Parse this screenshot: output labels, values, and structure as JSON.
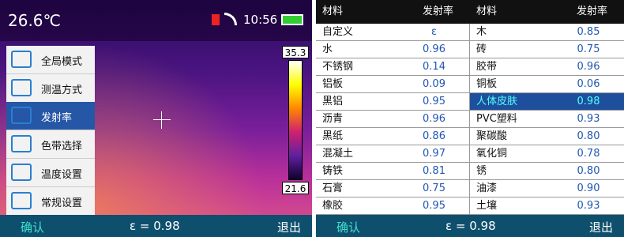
{
  "left": {
    "temperature": "26.6℃",
    "time": "10:56",
    "menu": [
      "全局模式",
      "测温方式",
      "发射率",
      "色带选择",
      "温度设置",
      "常规设置"
    ],
    "selected_menu": 2,
    "scale_max": "35.3",
    "scale_min": "21.6"
  },
  "footer": {
    "confirm": "确认",
    "emissivity": "ε = 0.98",
    "exit": "退出"
  },
  "table": {
    "header": [
      "材料",
      "发射率",
      "材料",
      "发射率"
    ],
    "rows": [
      [
        "自定义",
        "ε",
        "木",
        "0.85"
      ],
      [
        "水",
        "0.96",
        "砖",
        "0.75"
      ],
      [
        "不锈钢",
        "0.14",
        "胶带",
        "0.96"
      ],
      [
        "铝板",
        "0.09",
        "铜板",
        "0.06"
      ],
      [
        "黑铝",
        "0.95",
        "人体皮肤",
        "0.98"
      ],
      [
        "沥青",
        "0.96",
        "PVC塑料",
        "0.93"
      ],
      [
        "黑纸",
        "0.86",
        "聚碳酸",
        "0.80"
      ],
      [
        "混凝土",
        "0.97",
        "氧化铜",
        "0.78"
      ],
      [
        "铸铁",
        "0.81",
        "锈",
        "0.80"
      ],
      [
        "石膏",
        "0.75",
        "油漆",
        "0.90"
      ],
      [
        "橡胶",
        "0.95",
        "土壤",
        "0.93"
      ]
    ],
    "selected_cell": [
      4,
      2
    ]
  }
}
